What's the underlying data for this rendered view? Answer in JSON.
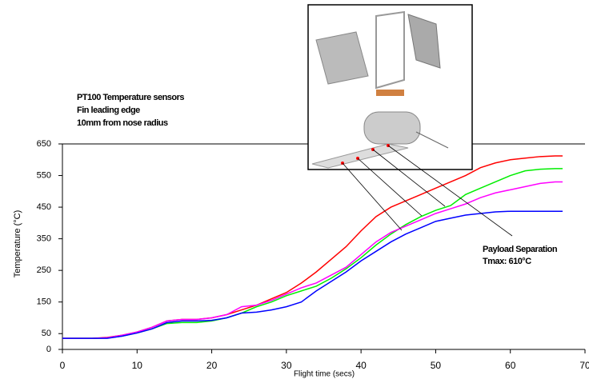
{
  "chart_data": {
    "type": "line",
    "annotations": [
      "PT100 Temperature sensors",
      "Fin leading edge",
      "10mm from nose radius",
      "Payload Separation",
      "Tmax: 610°C"
    ],
    "x_label": "Flight time (secs)",
    "y_label": "Temperature (°C)",
    "x": [
      0,
      2,
      4,
      6,
      8,
      10,
      12,
      14,
      16,
      18,
      20,
      22,
      24,
      26,
      28,
      30,
      32,
      34,
      36,
      38,
      40,
      42,
      44,
      46,
      48,
      50,
      52,
      54,
      56,
      58,
      60,
      62,
      64,
      66,
      67
    ],
    "series": [
      {
        "color": "#ff0000",
        "values": [
          35,
          35,
          35,
          38,
          45,
          55,
          70,
          90,
          95,
          95,
          100,
          110,
          125,
          140,
          160,
          180,
          210,
          245,
          285,
          325,
          375,
          420,
          450,
          470,
          490,
          510,
          530,
          550,
          575,
          590,
          600,
          605,
          610,
          612,
          612
        ]
      },
      {
        "color": "#00ee00",
        "values": [
          35,
          35,
          35,
          36,
          42,
          52,
          65,
          82,
          85,
          85,
          90,
          100,
          115,
          135,
          150,
          170,
          185,
          200,
          225,
          255,
          290,
          330,
          365,
          395,
          420,
          440,
          455,
          490,
          510,
          530,
          550,
          565,
          570,
          572,
          572
        ]
      },
      {
        "color": "#ff00ff",
        "values": [
          35,
          35,
          35,
          37,
          45,
          55,
          70,
          90,
          95,
          95,
          100,
          110,
          135,
          140,
          155,
          175,
          195,
          210,
          235,
          260,
          300,
          340,
          370,
          390,
          410,
          430,
          445,
          460,
          480,
          495,
          505,
          515,
          525,
          530,
          530
        ]
      },
      {
        "color": "#0000ff",
        "values": [
          35,
          35,
          35,
          35,
          42,
          52,
          65,
          85,
          90,
          90,
          92,
          100,
          115,
          118,
          125,
          135,
          150,
          185,
          215,
          245,
          280,
          310,
          340,
          365,
          385,
          405,
          415,
          425,
          430,
          435,
          437,
          437,
          437,
          437,
          437
        ]
      }
    ],
    "xlim": [
      0,
      70
    ],
    "xticks": [
      0,
      10,
      20,
      30,
      40,
      50,
      60,
      70
    ],
    "ylim": [
      0,
      650
    ],
    "yticks": [
      0,
      50,
      150,
      250,
      350,
      450,
      550,
      650
    ]
  }
}
